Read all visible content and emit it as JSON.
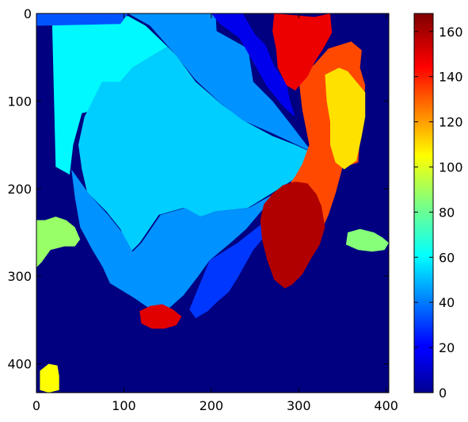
{
  "chart_data": {
    "type": "heatmap",
    "title": "",
    "xlabel": "",
    "ylabel": "",
    "colormap": "jet",
    "xlim": [
      0,
      403
    ],
    "ylim": [
      433,
      0
    ],
    "x_ticks": [
      0,
      100,
      200,
      300,
      400
    ],
    "y_ticks": [
      0,
      100,
      200,
      300,
      400
    ],
    "colorbar": {
      "vmin": 0,
      "vmax": 168,
      "ticks": [
        0,
        20,
        40,
        60,
        80,
        100,
        120,
        140,
        160
      ]
    },
    "regions": [
      {
        "label": "background",
        "value": 0
      },
      {
        "label": "top-left-cyan",
        "value": 62
      },
      {
        "label": "center-cyan",
        "value": 55
      },
      {
        "label": "lower-light-blue",
        "value": 45
      },
      {
        "label": "upper-light-blue",
        "value": 45
      },
      {
        "label": "mid-blue",
        "value": 30
      },
      {
        "label": "deep-blue",
        "value": 18
      },
      {
        "label": "orange-right",
        "value": 135
      },
      {
        "label": "yellow-right",
        "value": 110
      },
      {
        "label": "red-top-right",
        "value": 150
      },
      {
        "label": "dark-red-lower",
        "value": 160
      },
      {
        "label": "red-bottom-blob",
        "value": 152
      },
      {
        "label": "green-left-patch",
        "value": 88
      },
      {
        "label": "green-right-patch",
        "value": 85
      },
      {
        "label": "yellow-bottom-left",
        "value": 105
      },
      {
        "label": "top-band-blue",
        "value": 35
      }
    ]
  }
}
